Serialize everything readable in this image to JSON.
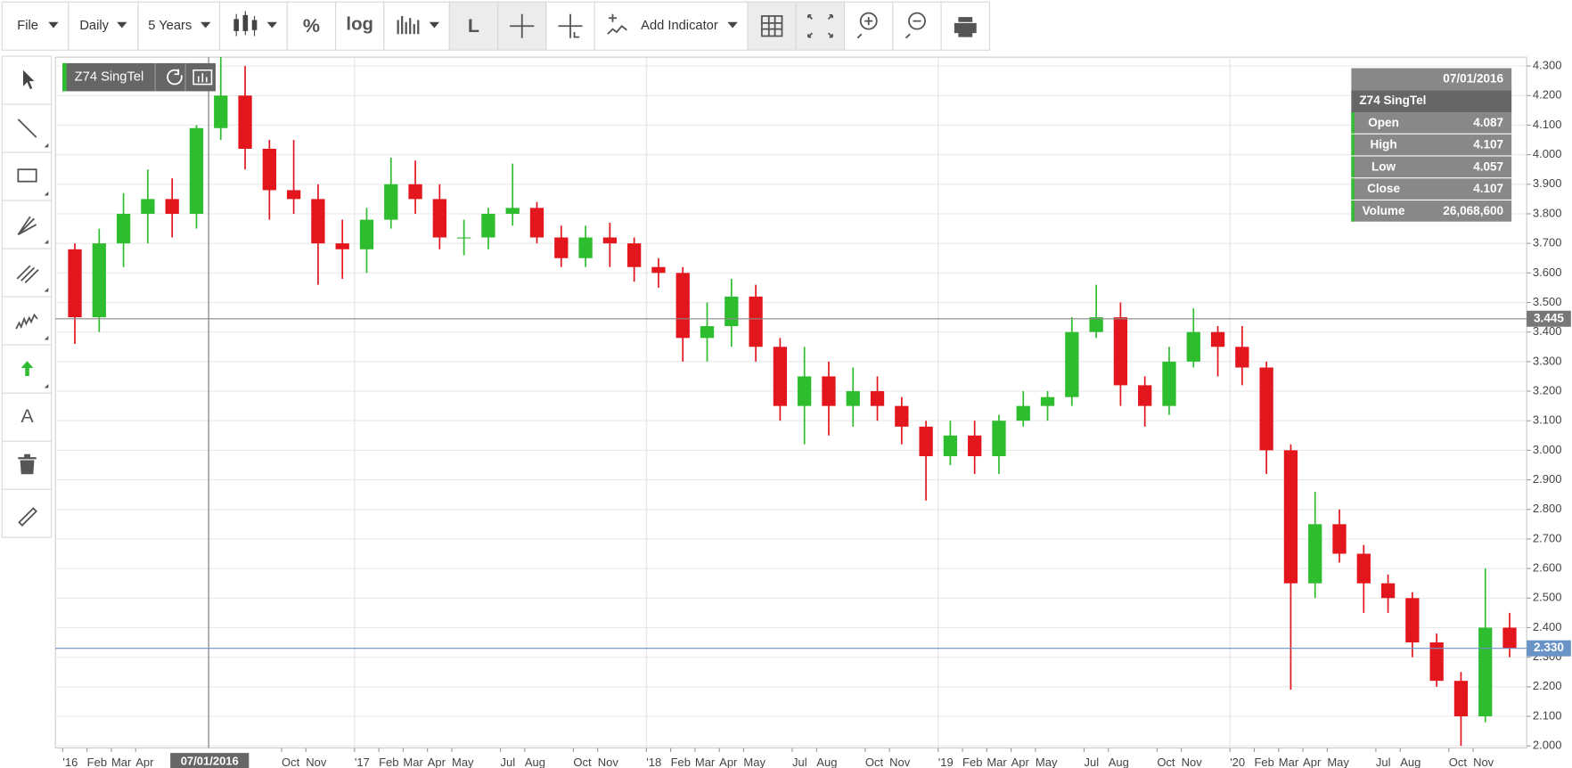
{
  "toolbar": {
    "file": "File",
    "interval": "Daily",
    "range": "5 Years",
    "percent": "%",
    "log": "log",
    "line": "L",
    "indicator": "Add Indicator"
  },
  "drawing_tools": {
    "text": "A"
  },
  "chart_data": {
    "type": "candlestick",
    "title": "Z74 SingTel",
    "x": [
      0.5,
      1.5,
      2.5,
      3.5,
      4.5,
      5.5,
      6.5,
      7.5,
      8.5,
      9.5,
      10.5,
      11.5,
      12.5,
      13.5,
      14.5,
      15.5,
      16.5,
      17.5,
      18.5,
      19.5,
      20.5,
      21.5,
      22.5,
      23.5,
      24.5,
      25.5,
      26.5,
      27.5,
      28.5,
      29.5,
      30.5,
      31.5,
      32.5,
      33.5,
      34.5,
      35.5,
      36.5,
      37.5,
      38.5,
      39.5,
      40.5,
      41.5,
      42.5,
      43.5,
      44.5,
      45.5,
      46.5,
      47.5,
      48.5,
      49.5,
      50.5,
      51.5,
      52.5,
      53.5,
      54.5,
      55.5,
      56.5,
      57.5,
      58.5,
      59.5
    ],
    "open": [
      3.68,
      3.45,
      3.7,
      3.8,
      3.85,
      3.8,
      4.09,
      4.2,
      4.02,
      3.88,
      3.85,
      3.7,
      3.68,
      3.78,
      3.9,
      3.85,
      3.72,
      3.72,
      3.8,
      3.82,
      3.72,
      3.65,
      3.72,
      3.7,
      3.62,
      3.6,
      3.38,
      3.42,
      3.52,
      3.35,
      3.15,
      3.25,
      3.15,
      3.2,
      3.15,
      3.08,
      2.98,
      3.05,
      2.98,
      3.1,
      3.15,
      3.18,
      3.4,
      3.45,
      3.22,
      3.15,
      3.3,
      3.4,
      3.35,
      3.28,
      3.0,
      2.55,
      2.75,
      2.65,
      2.55,
      2.5,
      2.35,
      2.22,
      2.1,
      2.4
    ],
    "high": [
      3.7,
      3.75,
      3.87,
      3.95,
      3.92,
      4.1,
      4.33,
      4.3,
      4.05,
      4.05,
      3.9,
      3.78,
      3.82,
      3.99,
      3.98,
      3.9,
      3.78,
      3.82,
      3.97,
      3.84,
      3.76,
      3.76,
      3.77,
      3.72,
      3.65,
      3.62,
      3.5,
      3.58,
      3.56,
      3.38,
      3.35,
      3.3,
      3.28,
      3.25,
      3.18,
      3.1,
      3.1,
      3.1,
      3.12,
      3.2,
      3.2,
      3.45,
      3.56,
      3.5,
      3.25,
      3.35,
      3.48,
      3.42,
      3.42,
      3.3,
      3.02,
      2.86,
      2.8,
      2.68,
      2.58,
      2.52,
      2.38,
      2.25,
      2.6,
      2.45
    ],
    "low": [
      3.36,
      3.4,
      3.62,
      3.7,
      3.72,
      3.75,
      4.05,
      3.95,
      3.78,
      3.8,
      3.56,
      3.58,
      3.6,
      3.75,
      3.8,
      3.68,
      3.66,
      3.68,
      3.76,
      3.7,
      3.62,
      3.62,
      3.62,
      3.57,
      3.55,
      3.3,
      3.3,
      3.35,
      3.3,
      3.1,
      3.02,
      3.05,
      3.08,
      3.1,
      3.02,
      2.83,
      2.95,
      2.92,
      2.92,
      3.08,
      3.1,
      3.15,
      3.38,
      3.15,
      3.08,
      3.12,
      3.28,
      3.25,
      3.22,
      2.92,
      2.19,
      2.5,
      2.62,
      2.45,
      2.45,
      2.3,
      2.2,
      2.0,
      2.08,
      2.3
    ],
    "close": [
      3.45,
      3.7,
      3.8,
      3.85,
      3.8,
      4.09,
      4.2,
      4.02,
      3.88,
      3.85,
      3.7,
      3.68,
      3.78,
      3.9,
      3.85,
      3.72,
      3.72,
      3.8,
      3.82,
      3.72,
      3.65,
      3.72,
      3.7,
      3.62,
      3.6,
      3.38,
      3.42,
      3.52,
      3.35,
      3.15,
      3.25,
      3.15,
      3.2,
      3.15,
      3.08,
      2.98,
      3.05,
      2.98,
      3.1,
      3.15,
      3.18,
      3.4,
      3.45,
      3.22,
      3.15,
      3.3,
      3.4,
      3.35,
      3.28,
      3.0,
      2.55,
      2.75,
      2.65,
      2.55,
      2.5,
      2.35,
      2.22,
      2.1,
      2.4,
      2.33
    ],
    "up_color": "#2ebd2e",
    "down_color": "#e3161d",
    "xlim": [
      -0.3,
      60.2
    ],
    "xticks": [
      {
        "value": 0,
        "label": "'16"
      },
      {
        "value": 1,
        "label": "Feb"
      },
      {
        "value": 2,
        "label": "Mar"
      },
      {
        "value": 3,
        "label": "Apr"
      },
      {
        "value": 9,
        "label": "Oct"
      },
      {
        "value": 10,
        "label": "Nov"
      },
      {
        "value": 12,
        "label": "'17"
      },
      {
        "value": 13,
        "label": "Feb"
      },
      {
        "value": 14,
        "label": "Mar"
      },
      {
        "value": 15,
        "label": "Apr"
      },
      {
        "value": 16,
        "label": "May"
      },
      {
        "value": 18,
        "label": "Jul"
      },
      {
        "value": 19,
        "label": "Aug"
      },
      {
        "value": 21,
        "label": "Oct"
      },
      {
        "value": 22,
        "label": "Nov"
      },
      {
        "value": 24,
        "label": "'18"
      },
      {
        "value": 25,
        "label": "Feb"
      },
      {
        "value": 26,
        "label": "Mar"
      },
      {
        "value": 27,
        "label": "Apr"
      },
      {
        "value": 28,
        "label": "May"
      },
      {
        "value": 30,
        "label": "Jul"
      },
      {
        "value": 31,
        "label": "Aug"
      },
      {
        "value": 33,
        "label": "Oct"
      },
      {
        "value": 34,
        "label": "Nov"
      },
      {
        "value": 36,
        "label": "'19"
      },
      {
        "value": 37,
        "label": "Feb"
      },
      {
        "value": 38,
        "label": "Mar"
      },
      {
        "value": 39,
        "label": "Apr"
      },
      {
        "value": 40,
        "label": "May"
      },
      {
        "value": 42,
        "label": "Jul"
      },
      {
        "value": 43,
        "label": "Aug"
      },
      {
        "value": 45,
        "label": "Oct"
      },
      {
        "value": 46,
        "label": "Nov"
      },
      {
        "value": 48,
        "label": "'20"
      },
      {
        "value": 49,
        "label": "Feb"
      },
      {
        "value": 50,
        "label": "Mar"
      },
      {
        "value": 51,
        "label": "Apr"
      },
      {
        "value": 52,
        "label": "May"
      },
      {
        "value": 54,
        "label": "Jul"
      },
      {
        "value": 55,
        "label": "Aug"
      },
      {
        "value": 57,
        "label": "Oct"
      },
      {
        "value": 58,
        "label": "Nov"
      }
    ],
    "x_grid": [
      12,
      24,
      36,
      48
    ],
    "ylim": [
      1.993,
      4.33
    ],
    "yticks": [
      {
        "value": 2.0,
        "label": "2.000"
      },
      {
        "value": 2.1,
        "label": "2.100"
      },
      {
        "value": 2.2,
        "label": "2.200"
      },
      {
        "value": 2.3,
        "label": "2.300"
      },
      {
        "value": 2.4,
        "label": "2.400"
      },
      {
        "value": 2.5,
        "label": "2.500"
      },
      {
        "value": 2.6,
        "label": "2.600"
      },
      {
        "value": 2.7,
        "label": "2.700"
      },
      {
        "value": 2.8,
        "label": "2.800"
      },
      {
        "value": 2.9,
        "label": "2.900"
      },
      {
        "value": 3.0,
        "label": "3.000"
      },
      {
        "value": 3.1,
        "label": "3.100"
      },
      {
        "value": 3.2,
        "label": "3.200"
      },
      {
        "value": 3.3,
        "label": "3.300"
      },
      {
        "value": 3.4,
        "label": "3.400"
      },
      {
        "value": 3.5,
        "label": "3.500"
      },
      {
        "value": 3.6,
        "label": "3.600"
      },
      {
        "value": 3.7,
        "label": "3.700"
      },
      {
        "value": 3.8,
        "label": "3.800"
      },
      {
        "value": 3.9,
        "label": "3.900"
      },
      {
        "value": 4.0,
        "label": "4.000"
      },
      {
        "value": 4.1,
        "label": "4.100"
      },
      {
        "value": 4.2,
        "label": "4.200"
      },
      {
        "value": 4.3,
        "label": "4.300"
      }
    ],
    "grid": true,
    "crosshair": {
      "x": 6,
      "date_label": "07/01/2016",
      "price": 3.445
    },
    "last_price": {
      "value": 2.33,
      "label": "2.330"
    },
    "tooltip": {
      "date": "07/01/2016",
      "name": "Z74 SingTel",
      "fields": [
        {
          "label": "Open",
          "value": "4.087"
        },
        {
          "label": "High",
          "value": "4.107"
        },
        {
          "label": "Low",
          "value": "4.057"
        },
        {
          "label": "Close",
          "value": "4.107"
        },
        {
          "label": "Volume",
          "value": "26,068,600"
        }
      ]
    }
  }
}
